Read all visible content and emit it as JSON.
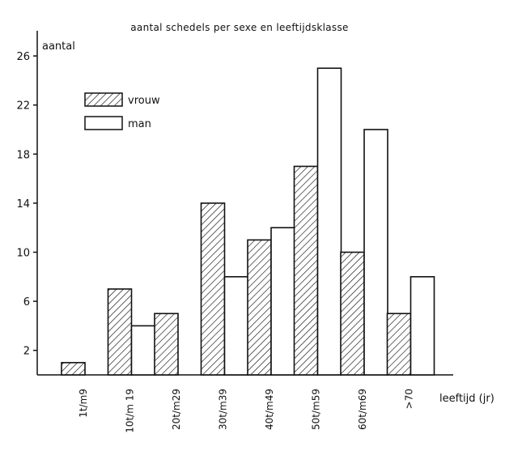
{
  "chart_data": {
    "type": "bar",
    "title": "aantal schedels per sexe en leeftijdsklasse",
    "ylabel": "aantal",
    "xlabel": "leeftijd (jr)",
    "categories": [
      "1t/m9",
      "10t/m 19",
      "20t/m29",
      "30t/m39",
      "40t/m49",
      "50t/m59",
      "60t/m69",
      ">70"
    ],
    "series": [
      {
        "name": "vrouw",
        "values": [
          1,
          7,
          5,
          14,
          11,
          17,
          10,
          5
        ],
        "fill": "hatched"
      },
      {
        "name": "man",
        "values": [
          0,
          4,
          0,
          8,
          12,
          25,
          20,
          8
        ],
        "fill": "white"
      }
    ],
    "yticks": [
      2,
      6,
      10,
      14,
      18,
      22,
      26
    ],
    "ylim": [
      0,
      28
    ],
    "grid": false,
    "legend_position": "top-left",
    "colors": {
      "line": "#111111",
      "background": "#ffffff"
    }
  }
}
